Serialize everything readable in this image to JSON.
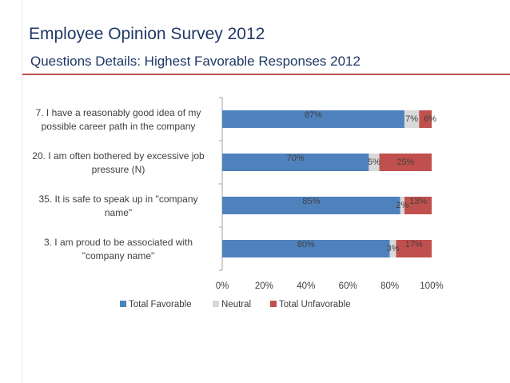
{
  "slide": {
    "title": "Employee Opinion Survey 2012",
    "subtitle": "Questions Details: Highest Favorable Responses 2012"
  },
  "chart_data": {
    "type": "bar",
    "orientation": "horizontal",
    "stacked": true,
    "title": "",
    "categories": [
      [
        "7. I have a reasonably good idea of my",
        "possible career path in the company"
      ],
      [
        "20. I am often bothered by excessive job",
        "pressure (N)"
      ],
      [
        "35. It is safe to speak up in \"company",
        "name\""
      ],
      [
        "3. I am proud to be associated with",
        "\"company name\""
      ]
    ],
    "series": [
      {
        "name": "Total Favorable",
        "values": [
          87,
          70,
          85,
          80
        ],
        "labels": [
          "87%",
          "70%",
          "85%",
          "80%"
        ],
        "color": "#4f81bd"
      },
      {
        "name": "Neutral",
        "values": [
          7,
          5,
          2,
          3
        ],
        "labels": [
          "7%",
          "5%",
          "2%",
          "3%"
        ],
        "color": "#d9d9d9"
      },
      {
        "name": "Total Unfavorable",
        "values": [
          6,
          25,
          13,
          17
        ],
        "labels": [
          "6%",
          "25%",
          "13%",
          "17%"
        ],
        "color": "#c0504d"
      }
    ],
    "xlim": [
      0,
      100
    ],
    "xticks": [
      "0%",
      "20%",
      "40%",
      "60%",
      "80%",
      "100%"
    ],
    "legend": "bottom",
    "grid": false,
    "colors": {
      "axis": "#a6a6a6",
      "text": "#404040",
      "accent_rule": "#c0504d",
      "title": "#1f3864"
    }
  }
}
